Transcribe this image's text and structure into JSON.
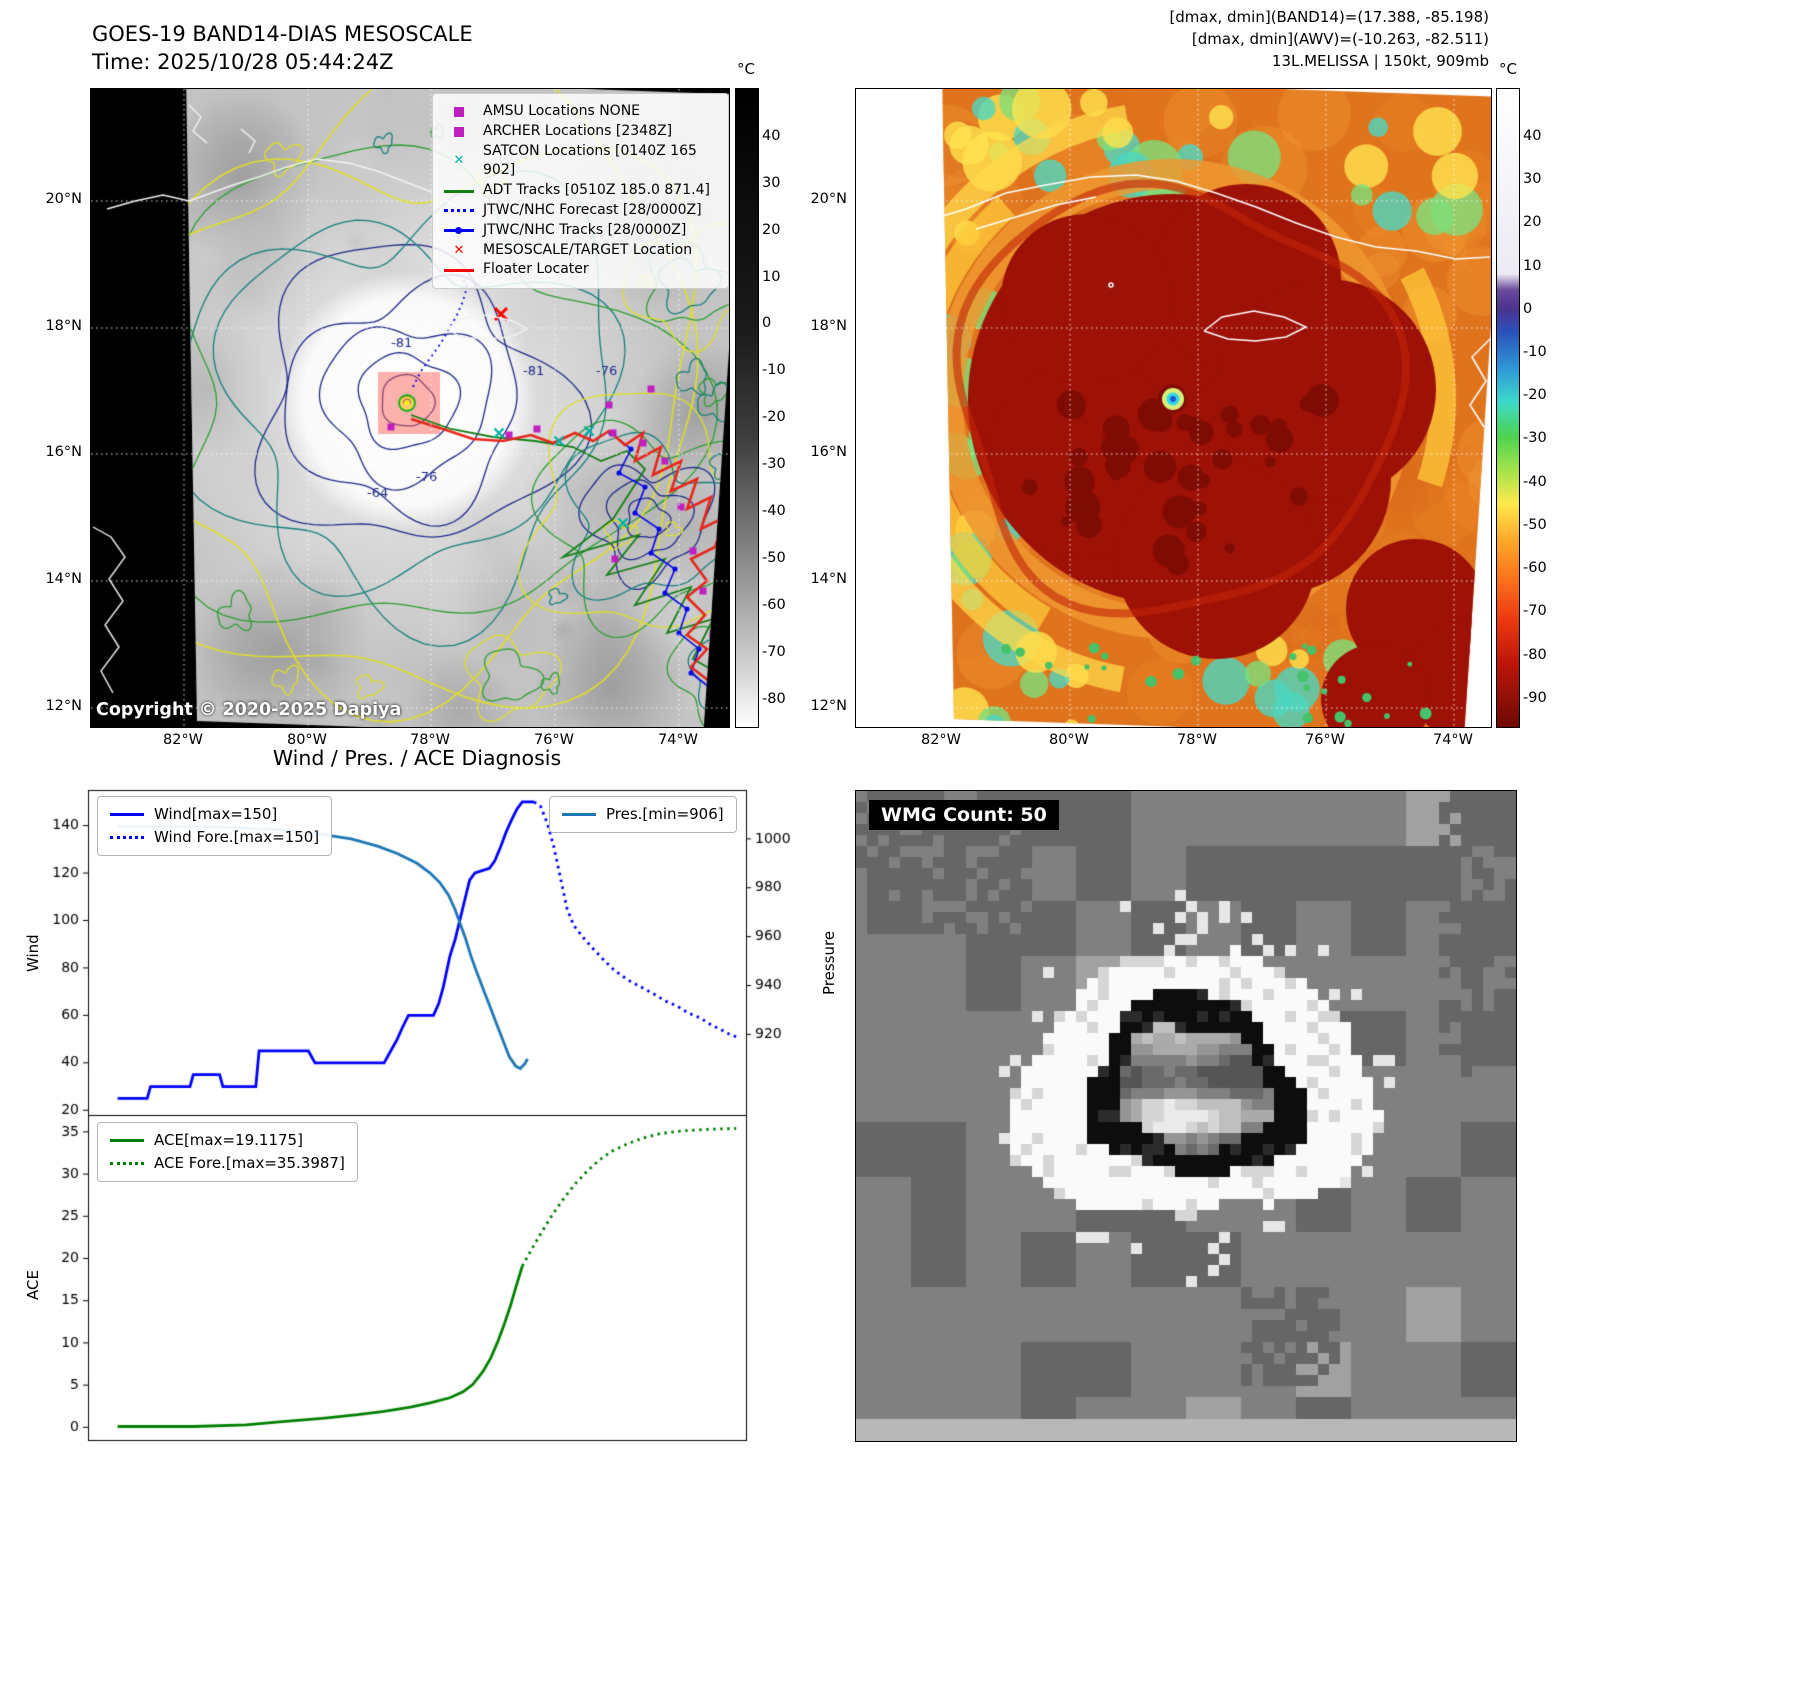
{
  "panel1": {
    "title": "GOES-19 BAND14-DIAS MESOSCALE",
    "time": "Time: 2025/10/28 05:44:24Z",
    "copyright": "Copyright © 2020-2025 Dapiya",
    "colorbar": {
      "unit": "°C",
      "ticks": [
        40,
        30,
        20,
        10,
        0,
        -10,
        -20,
        -30,
        -40,
        -50,
        -60,
        -70,
        -80
      ],
      "gradient": [
        [
          0,
          "#000000"
        ],
        [
          0.38,
          "#1b1b1b"
        ],
        [
          0.55,
          "#3f3f3f"
        ],
        [
          0.7,
          "#7a7a7a"
        ],
        [
          0.84,
          "#b5b5b5"
        ],
        [
          0.93,
          "#dddddd"
        ],
        [
          1,
          "#ffffff"
        ]
      ]
    },
    "lat_ticks": [
      "20°N",
      "18°N",
      "16°N",
      "14°N",
      "12°N"
    ],
    "lon_ticks": [
      "82°W",
      "80°W",
      "78°W",
      "76°W",
      "74°W"
    ],
    "legend": [
      {
        "label": "AMSU Locations NONE",
        "symbol": "square",
        "color": "#c020c0"
      },
      {
        "label": "ARCHER Locations [2348Z]",
        "symbol": "square",
        "color": "#c020c0"
      },
      {
        "label": "SATCON Locations [0140Z 165 902]",
        "symbol": "x",
        "color": "#00b2a8"
      },
      {
        "label": "ADT Tracks [0510Z 185.0 871.4]",
        "symbol": "line",
        "color": "#157e15"
      },
      {
        "label": "JTWC/NHC Forecast [28/0000Z]",
        "symbol": "dotted",
        "color": "#0000ff"
      },
      {
        "label": "JTWC/NHC Tracks [28/0000Z]",
        "symbol": "line-dot",
        "color": "#0000ff"
      },
      {
        "label": "MESOSCALE/TARGET Location",
        "symbol": "x",
        "color": "#ff0000"
      },
      {
        "label": "Floater Locater",
        "symbol": "line",
        "color": "#ff0000"
      }
    ],
    "contour_labels": [
      "-81",
      "-81",
      "-76",
      "-76",
      "-64"
    ]
  },
  "panel2": {
    "header_lines": [
      "[dmax, dmin](BAND14)=(17.388, -85.198)",
      "[dmax, dmin](AWV)=(-10.263, -82.511)",
      "13L.MELISSA | 150kt, 909mb"
    ],
    "colorbar": {
      "unit": "°C",
      "ticks": [
        40,
        30,
        20,
        10,
        0,
        -10,
        -20,
        -30,
        -40,
        -50,
        -60,
        -70,
        -80,
        -90
      ],
      "gradient": [
        [
          0,
          "#ffffff"
        ],
        [
          0.29,
          "#eceaf2"
        ],
        [
          0.315,
          "#6a4a9c"
        ],
        [
          0.345,
          "#4a3390"
        ],
        [
          0.38,
          "#2b50b8"
        ],
        [
          0.44,
          "#2f9ad6"
        ],
        [
          0.49,
          "#3cd9cb"
        ],
        [
          0.545,
          "#4ed24e"
        ],
        [
          0.6,
          "#a8e34c"
        ],
        [
          0.65,
          "#ffe94d"
        ],
        [
          0.7,
          "#ffb02e"
        ],
        [
          0.76,
          "#fb7a1d"
        ],
        [
          0.83,
          "#ee3a12"
        ],
        [
          0.9,
          "#bc1508"
        ],
        [
          1,
          "#6d0b03"
        ]
      ]
    },
    "lat_ticks": [
      "20°N",
      "18°N",
      "16°N",
      "14°N",
      "12°N"
    ],
    "lon_ticks": [
      "82°W",
      "80°W",
      "78°W",
      "76°W",
      "74°W"
    ]
  },
  "panel3": {
    "title": "Wind / Pres. / ACE Diagnosis"
  },
  "panel4": {
    "wmg_label": "WMG Count: 50"
  },
  "chart_data": [
    {
      "type": "line",
      "title": "Wind / Pres. / ACE Diagnosis",
      "ylabel": "Wind",
      "ylabel_right": "Pressure",
      "ylim": [
        18,
        155
      ],
      "ylim_right": [
        887,
        1020
      ],
      "yticks": [
        20,
        40,
        60,
        80,
        100,
        120,
        140
      ],
      "yticks_right": [
        920,
        940,
        960,
        980,
        1000
      ],
      "grid": false,
      "legend_left_entries": [
        "Wind[max=150]",
        "Wind Fore.[max=150]"
      ],
      "legend_right_entries": [
        "Pres.[min=906]"
      ],
      "series": [
        {
          "name": "Wind[max=150]",
          "color": "#0000ff",
          "style": "solid",
          "axis": "left",
          "points": [
            [
              0.045,
              25
            ],
            [
              0.09,
              25
            ],
            [
              0.095,
              30
            ],
            [
              0.155,
              30
            ],
            [
              0.16,
              35
            ],
            [
              0.2,
              35
            ],
            [
              0.205,
              30
            ],
            [
              0.255,
              30
            ],
            [
              0.26,
              45
            ],
            [
              0.335,
              45
            ],
            [
              0.345,
              40
            ],
            [
              0.45,
              40
            ],
            [
              0.46,
              45
            ],
            [
              0.47,
              50
            ],
            [
              0.478,
              55
            ],
            [
              0.487,
              60
            ],
            [
              0.525,
              60
            ],
            [
              0.533,
              65
            ],
            [
              0.54,
              72
            ],
            [
              0.55,
              85
            ],
            [
              0.558,
              92
            ],
            [
              0.565,
              100
            ],
            [
              0.572,
              108
            ],
            [
              0.58,
              117
            ],
            [
              0.588,
              120
            ],
            [
              0.61,
              122
            ],
            [
              0.618,
              125
            ],
            [
              0.627,
              131
            ],
            [
              0.635,
              137
            ],
            [
              0.643,
              142
            ],
            [
              0.652,
              147
            ],
            [
              0.66,
              150
            ],
            [
              0.678,
              150
            ]
          ]
        },
        {
          "name": "Wind Fore.[max=150]",
          "color": "#0000ff",
          "style": "dotted",
          "axis": "left",
          "points": [
            [
              0.678,
              150
            ],
            [
              0.688,
              148
            ],
            [
              0.698,
              141
            ],
            [
              0.708,
              131
            ],
            [
              0.718,
              118
            ],
            [
              0.728,
              105
            ],
            [
              0.738,
              98
            ],
            [
              0.752,
              93
            ],
            [
              0.768,
              88
            ],
            [
              0.785,
              83
            ],
            [
              0.8,
              79
            ],
            [
              0.82,
              75
            ],
            [
              0.84,
              72
            ],
            [
              0.86,
              69
            ],
            [
              0.878,
              66
            ],
            [
              0.895,
              64
            ],
            [
              0.912,
              61
            ],
            [
              0.93,
              59
            ],
            [
              0.947,
              56
            ],
            [
              0.962,
              54
            ],
            [
              0.975,
              52
            ],
            [
              0.985,
              51
            ]
          ]
        },
        {
          "name": "Pres.[min=906]",
          "color": "#1f77b4",
          "style": "solid",
          "axis": "right",
          "points": [
            [
              0.045,
              1005
            ],
            [
              0.18,
              1005
            ],
            [
              0.28,
              1004
            ],
            [
              0.35,
              1002
            ],
            [
              0.4,
              1000
            ],
            [
              0.44,
              997
            ],
            [
              0.47,
              994
            ],
            [
              0.5,
              990
            ],
            [
              0.52,
              986
            ],
            [
              0.535,
              982
            ],
            [
              0.548,
              977
            ],
            [
              0.558,
              971
            ],
            [
              0.566,
              965
            ],
            [
              0.574,
              959
            ],
            [
              0.582,
              952
            ],
            [
              0.59,
              946
            ],
            [
              0.6,
              939
            ],
            [
              0.61,
              932
            ],
            [
              0.62,
              925
            ],
            [
              0.63,
              918
            ],
            [
              0.64,
              911
            ],
            [
              0.65,
              907
            ],
            [
              0.657,
              906
            ],
            [
              0.664,
              908
            ],
            [
              0.668,
              910
            ]
          ]
        }
      ]
    },
    {
      "type": "line",
      "ylabel": "ACE",
      "ylim": [
        -1.5,
        37
      ],
      "yticks": [
        0,
        5,
        10,
        15,
        20,
        25,
        30,
        35
      ],
      "grid": false,
      "legend_left_entries": [
        "ACE[max=19.1175]",
        "ACE Fore.[max=35.3987]"
      ],
      "series": [
        {
          "name": "ACE[max=19.1175]",
          "color": "#008000",
          "style": "solid",
          "axis": "left",
          "points": [
            [
              0.045,
              0.1
            ],
            [
              0.16,
              0.1
            ],
            [
              0.24,
              0.3
            ],
            [
              0.3,
              0.7
            ],
            [
              0.36,
              1.1
            ],
            [
              0.41,
              1.5
            ],
            [
              0.45,
              1.9
            ],
            [
              0.49,
              2.4
            ],
            [
              0.52,
              2.9
            ],
            [
              0.55,
              3.5
            ],
            [
              0.57,
              4.2
            ],
            [
              0.585,
              5.1
            ],
            [
              0.6,
              6.6
            ],
            [
              0.612,
              8.2
            ],
            [
              0.623,
              10.2
            ],
            [
              0.633,
              12.3
            ],
            [
              0.642,
              14.4
            ],
            [
              0.651,
              16.8
            ],
            [
              0.66,
              19.1
            ]
          ]
        },
        {
          "name": "ACE Fore.[max=35.3987]",
          "color": "#008000",
          "style": "dotted",
          "axis": "left",
          "points": [
            [
              0.66,
              19.1
            ],
            [
              0.675,
              21.2
            ],
            [
              0.69,
              23.2
            ],
            [
              0.705,
              25.1
            ],
            [
              0.722,
              27.0
            ],
            [
              0.74,
              28.8
            ],
            [
              0.758,
              30.3
            ],
            [
              0.776,
              31.6
            ],
            [
              0.796,
              32.7
            ],
            [
              0.82,
              33.6
            ],
            [
              0.845,
              34.3
            ],
            [
              0.87,
              34.8
            ],
            [
              0.9,
              35.1
            ],
            [
              0.94,
              35.3
            ],
            [
              0.985,
              35.4
            ]
          ]
        }
      ]
    }
  ]
}
